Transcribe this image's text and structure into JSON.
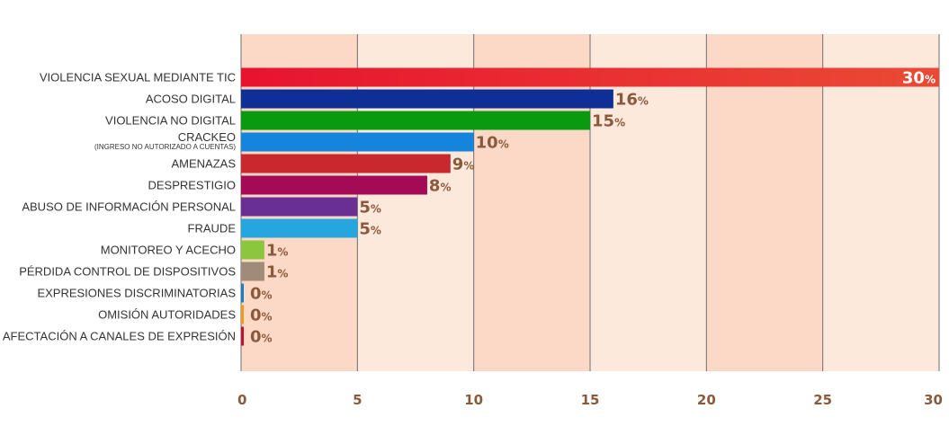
{
  "chart_data": {
    "type": "bar",
    "orientation": "horizontal",
    "categories": [
      "VIOLENCIA  SEXUAL MEDIANTE TIC",
      "ACOSO DIGITAL",
      "VIOLENCIA NO DIGITAL",
      "CRACKEO",
      "AMENAZAS",
      "DESPRESTIGIO",
      "ABUSO DE INFORMACIÓN PERSONAL",
      "FRAUDE",
      "MONITOREO Y ACECHO",
      "PÉRDIDA CONTROL DE DISPOSITIVOS",
      "EXPRESIONES DISCRIMINATORIAS",
      "OMISIÓN AUTORIDADES",
      "AFECTACIÓN A CANALES DE  EXPRESIÓN"
    ],
    "sublabels": [
      "",
      "",
      "",
      "(INGRESO NO AUTORIZADO A CUENTAS)",
      "",
      "",
      "",
      "",
      "",
      "",
      "",
      "",
      ""
    ],
    "values": [
      30,
      16,
      15,
      10,
      9,
      8,
      5,
      5,
      1,
      1,
      0,
      0,
      0
    ],
    "value_labels": [
      "30",
      "16",
      "15",
      "10",
      "9",
      "8",
      "5",
      "5",
      "1",
      "1",
      "0",
      "0",
      "0"
    ],
    "value_suffix": "%",
    "bar_colors": [
      "#e8132f",
      "#0f2f96",
      "#0a9a10",
      "#1484dc",
      "#c8282e",
      "#a50a57",
      "#6a2f93",
      "#26a6df",
      "#8cc63f",
      "#a08a78",
      "#1d7dc4",
      "#f29a1c",
      "#c8102e"
    ],
    "first_bar_gradient_end": "#ea4a35",
    "value_label_color": "#8a5a3c",
    "first_value_label_color": "#ffffff",
    "xlim": [
      0,
      30
    ],
    "xticks": [
      0,
      5,
      10,
      15,
      20,
      25,
      30
    ],
    "band_colors": [
      "#fcd9c6",
      "#fde8dc"
    ],
    "grid": true,
    "title": "",
    "xlabel": "",
    "ylabel": ""
  }
}
